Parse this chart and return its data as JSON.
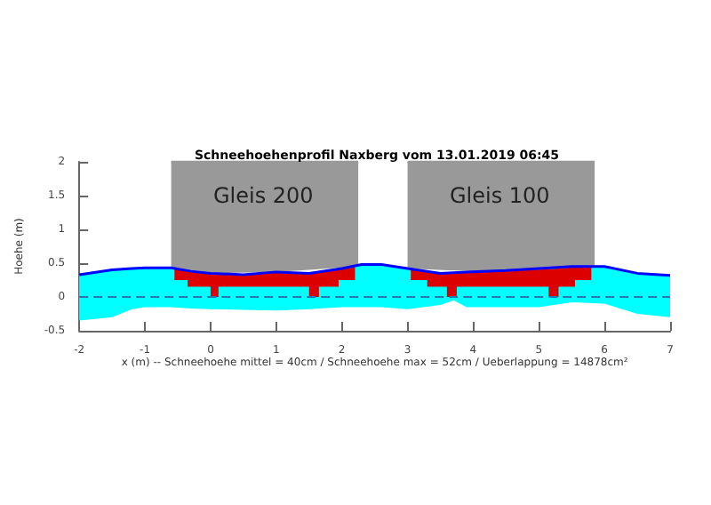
{
  "chart_data": {
    "type": "line",
    "title": "Schneehoehenprofil Naxberg vom 13.01.2019 06:45",
    "xlabel": "x (m) -- Schneehoehe mittel = 40cm / Schneehoehe max = 52cm / Ueberlappung = 14878cm²",
    "ylabel": "Hoehe (m)",
    "series": [
      {
        "color": "#999999",
        "x": [
          -0.6,
          0,
          1,
          2.25
        ],
        "values": [
          2,
          2,
          2,
          2
        ],
        "lower": [
          0.43,
          0.35,
          0.37,
          0.45
        ],
        "upper": [
          2,
          2,
          2,
          2
        ]
      },
      {
        "color": "#999999",
        "x": [
          3.0,
          4,
          5,
          5.85
        ],
        "values": [
          2,
          2,
          2,
          2
        ],
        "lower": [
          0.42,
          0.38,
          0.42,
          0.45
        ],
        "upper": [
          2,
          2,
          2,
          2
        ]
      },
      {
        "color": "#00ffff",
        "x": [
          -2,
          -1.5,
          -1.2,
          -1,
          -0.6,
          -0.3,
          0,
          0.5,
          1,
          1.5,
          2,
          2.3,
          2.6,
          3,
          3.5,
          3.7,
          3.9,
          4.5,
          5,
          5.5,
          6,
          6.5,
          7
        ],
        "values": [
          null,
          null,
          null,
          null,
          null,
          null,
          null,
          null,
          null,
          null,
          null,
          null,
          null,
          null,
          null,
          null,
          null,
          null,
          null,
          null,
          null,
          null,
          null
        ],
        "lower": [
          -0.35,
          -0.3,
          -0.18,
          -0.15,
          -0.15,
          -0.17,
          -0.18,
          -0.19,
          -0.2,
          -0.18,
          -0.15,
          -0.15,
          -0.15,
          -0.18,
          -0.12,
          -0.05,
          -0.15,
          -0.15,
          -0.15,
          -0.08,
          -0.1,
          -0.25,
          -0.3
        ],
        "upper": [
          0.33,
          0.4,
          0.42,
          0.43,
          0.43,
          0.38,
          0.35,
          0.33,
          0.37,
          0.35,
          0.42,
          0.48,
          0.48,
          0.42,
          0.35,
          0.36,
          0.37,
          0.39,
          0.42,
          0.45,
          0.45,
          0.35,
          0.32
        ]
      },
      {
        "color": "#dd0000",
        "x": [
          -0.55,
          -0.35,
          -0.35,
          0,
          0,
          0.12,
          0.12,
          0.6,
          1.0,
          1.5,
          1.5,
          1.65,
          1.65,
          1.95,
          1.95,
          2.2
        ],
        "values": [
          null,
          null,
          null,
          null,
          null,
          null,
          null,
          null,
          null,
          null,
          null,
          null,
          null,
          null,
          null,
          null
        ],
        "lower": [
          0.25,
          0.25,
          0.15,
          0.15,
          0,
          0,
          0.15,
          0.15,
          0.15,
          0.15,
          0,
          0,
          0.15,
          0.15,
          0.25,
          0.25
        ],
        "upper": [
          0.42,
          0.38,
          0.38,
          0.35,
          0.35,
          0.35,
          0.35,
          0.33,
          0.37,
          0.35,
          0.35,
          0.36,
          0.36,
          0.4,
          0.4,
          0.44
        ]
      },
      {
        "color": "#dd0000",
        "x": [
          3.05,
          3.3,
          3.3,
          3.6,
          3.6,
          3.75,
          3.75,
          4.2,
          4.6,
          5.15,
          5.15,
          5.3,
          5.3,
          5.55,
          5.55,
          5.8
        ],
        "values": [
          null,
          null,
          null,
          null,
          null,
          null,
          null,
          null,
          null,
          null,
          null,
          null,
          null,
          null,
          null,
          null
        ],
        "lower": [
          0.25,
          0.25,
          0.15,
          0.15,
          0,
          0,
          0.15,
          0.15,
          0.15,
          0.15,
          0,
          0,
          0.15,
          0.15,
          0.25,
          0.25
        ],
        "upper": [
          0.4,
          0.37,
          0.37,
          0.35,
          0.35,
          0.35,
          0.35,
          0.38,
          0.39,
          0.41,
          0.41,
          0.42,
          0.42,
          0.44,
          0.44,
          0.46
        ]
      },
      {
        "color": "#0000ff",
        "x": [
          -2,
          -1.5,
          -1.2,
          -1,
          -0.6,
          -0.3,
          0,
          0.5,
          1,
          1.5,
          2,
          2.3,
          2.6,
          3,
          3.5,
          3.7,
          3.9,
          4.5,
          5,
          5.5,
          6,
          6.5,
          7
        ],
        "values": [
          0.33,
          0.4,
          0.42,
          0.43,
          0.43,
          0.38,
          0.35,
          0.33,
          0.37,
          0.35,
          0.42,
          0.48,
          0.48,
          0.42,
          0.35,
          0.36,
          0.37,
          0.39,
          0.42,
          0.45,
          0.45,
          0.35,
          0.32
        ]
      }
    ],
    "ref_lines": [
      {
        "axis": "y",
        "value": 0,
        "color": "#1f77b4",
        "line_style": "dashed"
      }
    ],
    "annotations": [
      "Gleis 200",
      "Gleis 100"
    ],
    "xlim": [
      -2,
      7
    ],
    "xticks": [
      -2,
      -1,
      0,
      1,
      2,
      3,
      4,
      5,
      6,
      7
    ],
    "ylim": [
      -0.5,
      2
    ],
    "yticks": [
      -0.5,
      0,
      0.5,
      1,
      1.5,
      2
    ]
  }
}
